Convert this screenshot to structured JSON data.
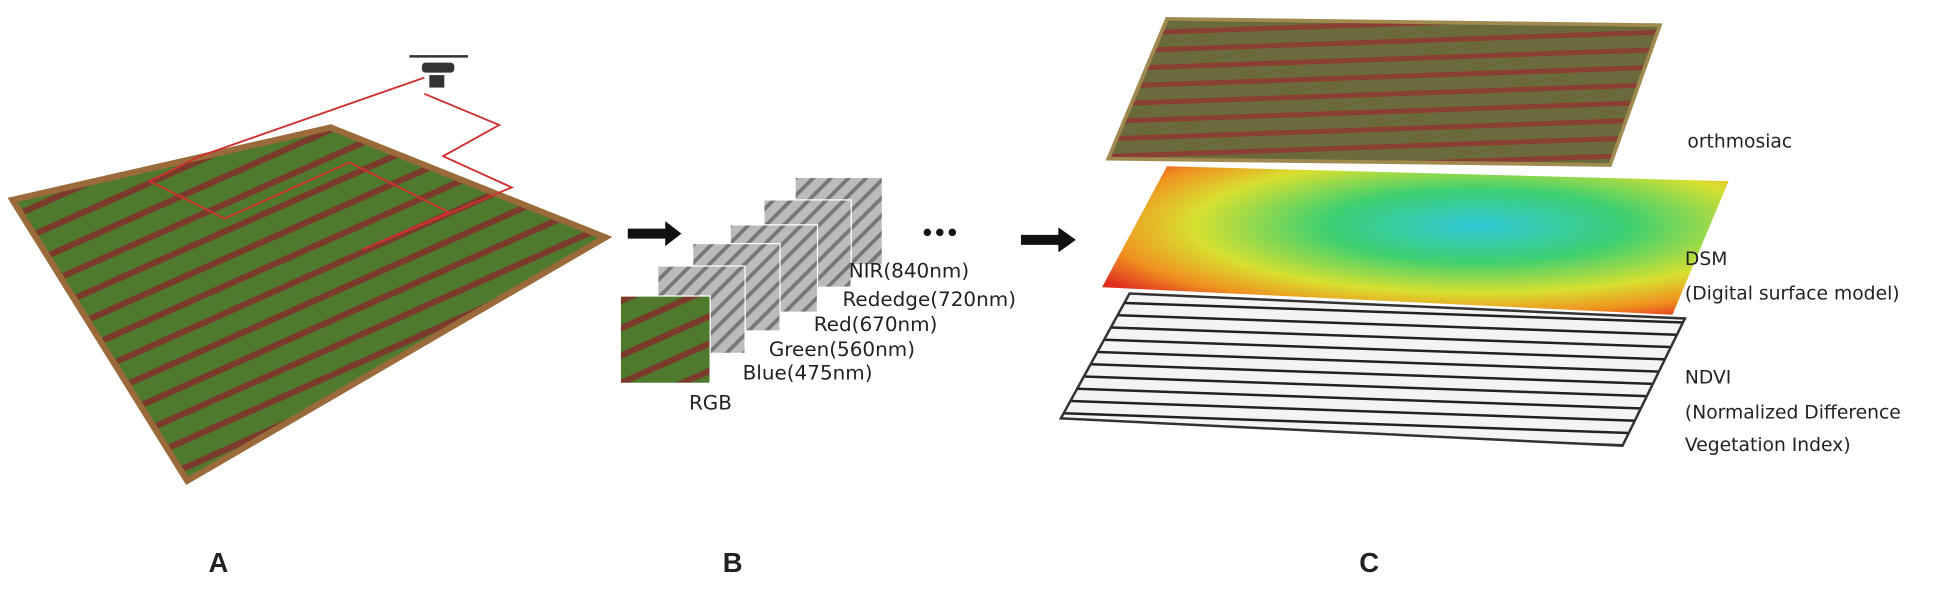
{
  "bands": [
    "NIR(840nm)",
    "Rededge(720nm)",
    "Red(670nm)",
    "Green(560nm)",
    "Blue(475nm)",
    "RGB"
  ],
  "layers": [
    {
      "name": "orthmosiac",
      "description": []
    },
    {
      "name": "DSM",
      "description": [
        "(Digital surface model)"
      ]
    },
    {
      "name": "NDVI",
      "description": [
        "(Normalized Difference",
        "Vegetation Index)"
      ]
    }
  ],
  "panel_labels": [
    "A",
    "B",
    "C"
  ]
}
